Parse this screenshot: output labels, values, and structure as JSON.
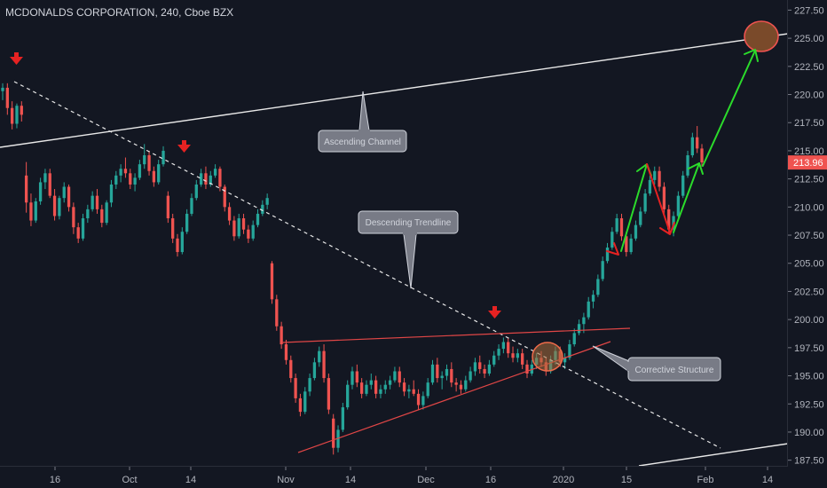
{
  "chart_data": {
    "type": "candlestick",
    "title": "MCDONALDS CORPORATION, 240, Cboe BZX",
    "y_axis": {
      "ticks": [
        "227.50",
        "225.00",
        "222.50",
        "220.00",
        "217.50",
        "215.00",
        "212.50",
        "210.00",
        "207.50",
        "205.00",
        "202.50",
        "200.00",
        "197.50",
        "195.00",
        "192.50",
        "190.00",
        "187.50"
      ],
      "ylim": [
        187.0,
        228.4
      ],
      "position": "right"
    },
    "x_axis": {
      "ticks": [
        "16",
        "Oct",
        "14",
        "Nov",
        "14",
        "Dec",
        "16",
        "2020",
        "15",
        "Feb",
        "14"
      ]
    },
    "last_price": {
      "value": 213.96,
      "label": "213.96",
      "color": "#ef5350"
    },
    "colors": {
      "up": "#26a69a",
      "down": "#ef5350",
      "background": "#131722",
      "arrow_green": "#2bdb2b",
      "arrow_red": "#e62222",
      "target_fill": "#7a4a2a"
    },
    "candles": [
      [
        220.3,
        221.0,
        219.5,
        220.6
      ],
      [
        220.6,
        221.0,
        218.2,
        218.8
      ],
      [
        218.8,
        219.4,
        216.9,
        217.4
      ],
      [
        217.4,
        219.2,
        217.0,
        219.0
      ],
      [
        219.0,
        219.4,
        217.6,
        218.2
      ],
      [
        212.8,
        214.0,
        209.5,
        210.4
      ],
      [
        210.4,
        211.2,
        208.3,
        208.8
      ],
      [
        208.8,
        210.8,
        208.6,
        210.5
      ],
      [
        210.5,
        212.6,
        210.2,
        212.2
      ],
      [
        212.2,
        213.4,
        211.6,
        213.0
      ],
      [
        213.0,
        213.4,
        210.8,
        211.0
      ],
      [
        211.0,
        211.6,
        208.8,
        209.2
      ],
      [
        209.2,
        211.0,
        208.9,
        210.8
      ],
      [
        210.8,
        212.2,
        210.4,
        211.8
      ],
      [
        211.8,
        212.0,
        209.6,
        210.0
      ],
      [
        210.0,
        210.4,
        207.6,
        208.2
      ],
      [
        208.2,
        208.6,
        206.8,
        207.2
      ],
      [
        207.2,
        209.4,
        207.0,
        209.0
      ],
      [
        209.0,
        210.2,
        208.6,
        209.8
      ],
      [
        209.8,
        211.4,
        209.6,
        211.0
      ],
      [
        211.0,
        211.6,
        209.4,
        209.8
      ],
      [
        209.8,
        210.2,
        208.2,
        208.6
      ],
      [
        208.6,
        210.6,
        208.4,
        210.4
      ],
      [
        210.4,
        212.4,
        210.0,
        212.0
      ],
      [
        212.0,
        213.2,
        211.6,
        212.8
      ],
      [
        212.8,
        213.8,
        212.2,
        213.4
      ],
      [
        213.4,
        214.4,
        212.6,
        213.0
      ],
      [
        213.0,
        213.4,
        211.6,
        212.0
      ],
      [
        212.0,
        213.0,
        211.4,
        212.6
      ],
      [
        212.6,
        214.2,
        212.4,
        213.8
      ],
      [
        213.8,
        215.6,
        213.4,
        214.6
      ],
      [
        214.6,
        215.0,
        212.8,
        213.2
      ],
      [
        213.2,
        213.6,
        211.8,
        212.2
      ],
      [
        212.2,
        214.2,
        212.0,
        213.8
      ],
      [
        213.8,
        215.4,
        213.6,
        215.0
      ],
      [
        211.0,
        211.4,
        208.6,
        209.0
      ],
      [
        209.0,
        209.4,
        206.8,
        207.2
      ],
      [
        207.2,
        207.6,
        205.6,
        206.0
      ],
      [
        206.0,
        208.2,
        205.8,
        207.8
      ],
      [
        207.8,
        209.8,
        207.6,
        209.4
      ],
      [
        209.4,
        211.2,
        209.2,
        210.8
      ],
      [
        210.8,
        212.4,
        210.6,
        212.0
      ],
      [
        212.0,
        213.4,
        211.8,
        213.0
      ],
      [
        213.0,
        213.6,
        211.6,
        212.0
      ],
      [
        212.0,
        213.2,
        211.8,
        212.8
      ],
      [
        212.8,
        213.8,
        212.6,
        213.4
      ],
      [
        213.4,
        213.6,
        211.4,
        211.8
      ],
      [
        211.8,
        212.0,
        209.6,
        210.0
      ],
      [
        210.0,
        210.4,
        208.4,
        208.8
      ],
      [
        208.8,
        209.2,
        207.0,
        207.4
      ],
      [
        207.4,
        209.4,
        207.2,
        209.0
      ],
      [
        209.0,
        209.4,
        207.6,
        208.0
      ],
      [
        208.0,
        208.4,
        206.8,
        207.2
      ],
      [
        207.2,
        208.8,
        207.0,
        208.4
      ],
      [
        208.4,
        209.8,
        208.2,
        209.4
      ],
      [
        209.4,
        210.6,
        209.2,
        210.2
      ],
      [
        210.2,
        211.2,
        209.8,
        210.8
      ],
      [
        205.0,
        205.2,
        201.4,
        201.8
      ],
      [
        201.8,
        202.2,
        199.0,
        199.4
      ],
      [
        199.4,
        199.8,
        197.4,
        197.8
      ],
      [
        197.8,
        198.2,
        196.0,
        196.4
      ],
      [
        196.4,
        196.8,
        194.4,
        194.8
      ],
      [
        194.8,
        195.2,
        192.6,
        193.0
      ],
      [
        193.0,
        193.4,
        191.4,
        191.8
      ],
      [
        191.8,
        194.0,
        191.6,
        193.6
      ],
      [
        193.6,
        195.2,
        193.2,
        194.8
      ],
      [
        194.8,
        196.6,
        194.6,
        196.2
      ],
      [
        196.2,
        197.6,
        195.8,
        197.2
      ],
      [
        197.2,
        197.8,
        194.4,
        194.8
      ],
      [
        194.8,
        195.2,
        191.6,
        192.0
      ],
      [
        191.2,
        191.6,
        188.0,
        188.6
      ],
      [
        188.6,
        190.6,
        188.2,
        190.2
      ],
      [
        190.2,
        192.6,
        190.0,
        192.2
      ],
      [
        192.2,
        194.6,
        192.0,
        194.2
      ],
      [
        194.2,
        195.8,
        193.8,
        195.4
      ],
      [
        195.4,
        196.0,
        194.0,
        194.4
      ],
      [
        194.4,
        194.8,
        193.0,
        193.4
      ],
      [
        193.4,
        194.6,
        193.2,
        194.2
      ],
      [
        194.2,
        195.2,
        193.8,
        194.6
      ],
      [
        194.6,
        195.0,
        193.0,
        193.4
      ],
      [
        193.4,
        194.2,
        193.0,
        193.8
      ],
      [
        193.8,
        194.6,
        193.4,
        194.2
      ],
      [
        194.2,
        195.0,
        193.8,
        194.6
      ],
      [
        194.6,
        195.8,
        194.4,
        195.4
      ],
      [
        195.4,
        195.8,
        194.0,
        194.4
      ],
      [
        194.4,
        194.8,
        193.2,
        193.6
      ],
      [
        193.6,
        194.2,
        193.0,
        193.8
      ],
      [
        193.8,
        194.6,
        193.2,
        193.4
      ],
      [
        193.4,
        193.8,
        192.0,
        192.4
      ],
      [
        192.4,
        193.6,
        192.0,
        193.2
      ],
      [
        193.2,
        194.8,
        193.0,
        194.4
      ],
      [
        194.4,
        196.4,
        194.2,
        196.0
      ],
      [
        196.0,
        196.6,
        194.4,
        194.8
      ],
      [
        194.8,
        195.4,
        193.8,
        195.0
      ],
      [
        195.0,
        196.0,
        194.6,
        195.6
      ],
      [
        195.6,
        196.2,
        194.0,
        194.4
      ],
      [
        194.4,
        194.8,
        193.6,
        194.2
      ],
      [
        194.2,
        194.6,
        193.4,
        193.8
      ],
      [
        193.8,
        195.0,
        193.6,
        194.6
      ],
      [
        194.6,
        195.8,
        194.4,
        195.4
      ],
      [
        195.4,
        196.6,
        195.0,
        196.2
      ],
      [
        196.2,
        196.8,
        195.2,
        195.6
      ],
      [
        195.6,
        196.0,
        194.8,
        195.2
      ],
      [
        195.2,
        196.4,
        195.0,
        196.0
      ],
      [
        196.0,
        197.2,
        195.8,
        196.8
      ],
      [
        196.8,
        197.8,
        196.4,
        197.4
      ],
      [
        197.4,
        198.4,
        197.0,
        198.0
      ],
      [
        198.0,
        198.4,
        196.6,
        197.0
      ],
      [
        197.0,
        197.6,
        196.2,
        196.6
      ],
      [
        196.6,
        197.4,
        196.2,
        197.0
      ],
      [
        197.0,
        197.4,
        195.6,
        196.0
      ],
      [
        196.0,
        196.4,
        194.8,
        195.2
      ],
      [
        195.2,
        196.4,
        195.0,
        196.0
      ],
      [
        196.0,
        197.0,
        195.6,
        196.6
      ],
      [
        196.6,
        197.2,
        195.8,
        196.2
      ],
      [
        196.2,
        196.6,
        195.0,
        195.4
      ],
      [
        195.4,
        196.8,
        195.2,
        196.4
      ],
      [
        196.4,
        197.6,
        196.0,
        197.2
      ],
      [
        197.2,
        197.6,
        195.8,
        196.2
      ],
      [
        196.2,
        197.0,
        195.6,
        196.6
      ],
      [
        196.6,
        198.2,
        196.4,
        197.8
      ],
      [
        197.8,
        199.2,
        197.6,
        198.8
      ],
      [
        198.8,
        200.0,
        198.6,
        199.6
      ],
      [
        199.6,
        200.6,
        198.8,
        200.2
      ],
      [
        200.2,
        202.0,
        200.0,
        201.6
      ],
      [
        201.6,
        202.6,
        201.0,
        202.2
      ],
      [
        202.2,
        204.0,
        202.0,
        203.6
      ],
      [
        203.6,
        205.6,
        203.4,
        205.2
      ],
      [
        205.2,
        206.8,
        205.0,
        206.4
      ],
      [
        206.4,
        208.2,
        206.2,
        207.8
      ],
      [
        207.8,
        209.4,
        207.6,
        209.0
      ],
      [
        209.0,
        209.4,
        207.0,
        207.4
      ],
      [
        207.4,
        207.8,
        205.6,
        206.0
      ],
      [
        206.0,
        207.6,
        205.8,
        207.2
      ],
      [
        207.2,
        208.8,
        207.0,
        208.4
      ],
      [
        208.4,
        210.0,
        208.2,
        209.6
      ],
      [
        209.6,
        211.6,
        209.4,
        211.2
      ],
      [
        211.2,
        212.8,
        211.0,
        212.4
      ],
      [
        212.4,
        213.6,
        212.0,
        213.2
      ],
      [
        213.2,
        213.6,
        211.4,
        211.8
      ],
      [
        211.8,
        212.2,
        209.4,
        209.8
      ],
      [
        209.8,
        210.2,
        207.6,
        208.0
      ],
      [
        208.0,
        209.6,
        207.4,
        209.2
      ],
      [
        209.2,
        211.4,
        209.0,
        211.0
      ],
      [
        211.0,
        213.2,
        210.8,
        212.8
      ],
      [
        212.8,
        215.0,
        212.6,
        214.6
      ],
      [
        214.6,
        216.6,
        214.4,
        216.2
      ],
      [
        216.2,
        217.2,
        214.8,
        215.2
      ],
      [
        215.2,
        215.6,
        213.6,
        213.96
      ]
    ],
    "annotations": {
      "labels": [
        "Ascending Channel",
        "Descending Trendline",
        "Corrective Structure"
      ]
    }
  }
}
